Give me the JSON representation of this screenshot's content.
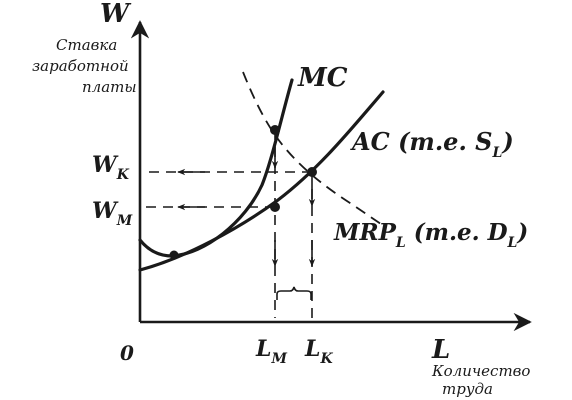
{
  "y_axis": {
    "symbol": "W",
    "caption": [
      "Ставка",
      "заработной",
      "платы"
    ]
  },
  "x_axis": {
    "symbol": "L",
    "caption": [
      "Количество",
      "труда"
    ]
  },
  "origin": "0",
  "curves": {
    "mc": "MC",
    "ac_main": "AC (т.е. S",
    "ac_sub": "L",
    "ac_close": ")",
    "mrp_main": "MRP",
    "mrp_sub": "L",
    "mrp_mid": " (т.е. D",
    "mrp_sub2": "L",
    "mrp_close": ")"
  },
  "levels": {
    "wk_main": "W",
    "wk_sub": "K",
    "wm_main": "W",
    "wm_sub": "M",
    "lm_main": "L",
    "lm_sub": "M",
    "lk_main": "L",
    "lk_sub": "K"
  }
}
